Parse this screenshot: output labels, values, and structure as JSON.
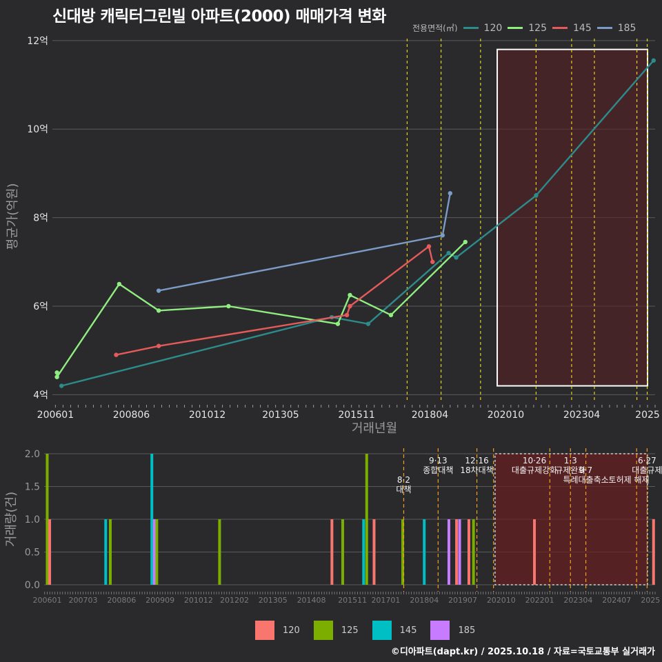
{
  "chart_data": [
    {
      "type": "line",
      "title": "신대방 캐릭터그린빌 아파트(2000) 매매가격 변화",
      "xlabel": "거래년월",
      "ylabel": "평균가(억원)",
      "ylim": [
        3.85,
        12.2
      ],
      "xlim": [
        2005.9,
        2025.75
      ],
      "ytick_values": [
        4,
        6,
        8,
        10,
        12
      ],
      "yticks": [
        "4억",
        "6억",
        "8억",
        "10억",
        "12억"
      ],
      "xtick_values": [
        2006.0,
        2008.5,
        2011.0,
        2013.417,
        2015.917,
        2018.333,
        2020.833,
        2023.333,
        2025.5
      ],
      "xticks": [
        "200601",
        "200806",
        "201012",
        "201305",
        "201511",
        "201804",
        "202010",
        "202304",
        "2025"
      ],
      "legend_title": "전용면적(㎡)",
      "series": [
        {
          "name": "120",
          "color": "#2e8b8b",
          "points": [
            [
              2006.2,
              4.2
            ],
            [
              2015.1,
              5.75
            ],
            [
              2016.3,
              5.6
            ],
            [
              2018.95,
              7.2
            ],
            [
              2019.2,
              7.1
            ],
            [
              2021.83,
              8.5
            ],
            [
              2025.7,
              11.55
            ]
          ]
        },
        {
          "name": "125",
          "color": "#90ee80",
          "points": [
            [
              2006.05,
              4.5
            ],
            [
              2006.05,
              4.4
            ],
            [
              2008.1,
              6.5
            ],
            [
              2009.4,
              5.9
            ],
            [
              2011.7,
              6.0
            ],
            [
              2015.3,
              5.6
            ],
            [
              2015.7,
              6.25
            ],
            [
              2017.05,
              5.8
            ],
            [
              2019.5,
              7.45
            ]
          ]
        },
        {
          "name": "145",
          "color": "#e55b5b",
          "points": [
            [
              2008.0,
              4.9
            ],
            [
              2009.4,
              5.1
            ],
            [
              2015.6,
              5.8
            ],
            [
              2015.7,
              6.0
            ],
            [
              2018.3,
              7.35
            ],
            [
              2018.42,
              7.0
            ]
          ]
        },
        {
          "name": "185",
          "color": "#7a9cc6",
          "points": [
            [
              2009.4,
              6.35
            ],
            [
              2018.75,
              7.6
            ],
            [
              2019.0,
              8.55
            ]
          ]
        }
      ],
      "vlines": [
        2017.583,
        2018.7,
        2020.0,
        2021.83,
        2023.0,
        2023.75,
        2025.15,
        2025.49
      ],
      "highlight": {
        "from": 2020.55,
        "to": 2025.5,
        "ymin": 4.2,
        "ymax": 11.8
      }
    },
    {
      "type": "bar",
      "ylabel": "거래량(건)",
      "ylim": [
        0,
        2.0
      ],
      "xlim": [
        2005.9,
        2025.75
      ],
      "ytick_values": [
        0,
        0.5,
        1,
        1.5,
        2
      ],
      "yticks": [
        "0.0",
        "0.5",
        "1.0",
        "1.5",
        "2.0"
      ],
      "xtick_values": [
        2006.0,
        2007.167,
        2008.417,
        2009.667,
        2010.917,
        2012.083,
        2013.333,
        2014.583,
        2015.917,
        2017.0,
        2018.25,
        2019.5,
        2020.75,
        2022.0,
        2023.25,
        2024.5,
        2025.6
      ],
      "xticks": [
        "200601",
        "200703",
        "200806",
        "200909",
        "201012",
        "201202",
        "201305",
        "201408",
        "201511",
        "201701",
        "201804",
        "201907",
        "202010",
        "202201",
        "202304",
        "202407",
        "2025"
      ],
      "bars": [
        {
          "x": 2006.0,
          "value": 2,
          "series": "125"
        },
        {
          "x": 2006.08,
          "value": 1,
          "series": "120"
        },
        {
          "x": 2007.9,
          "value": 1,
          "series": "145"
        },
        {
          "x": 2008.05,
          "value": 1,
          "series": "125"
        },
        {
          "x": 2009.4,
          "value": 2,
          "series": "145"
        },
        {
          "x": 2009.48,
          "value": 1,
          "series": "185"
        },
        {
          "x": 2009.56,
          "value": 1,
          "series": "125"
        },
        {
          "x": 2011.6,
          "value": 1,
          "series": "125"
        },
        {
          "x": 2015.25,
          "value": 1,
          "series": "120"
        },
        {
          "x": 2015.6,
          "value": 1,
          "series": "125"
        },
        {
          "x": 2016.28,
          "value": 1,
          "series": "145"
        },
        {
          "x": 2016.38,
          "value": 2,
          "series": "125"
        },
        {
          "x": 2016.62,
          "value": 1,
          "series": "120"
        },
        {
          "x": 2017.55,
          "value": 1,
          "series": "125"
        },
        {
          "x": 2018.25,
          "value": 1,
          "series": "145"
        },
        {
          "x": 2019.05,
          "value": 1,
          "series": "185"
        },
        {
          "x": 2019.3,
          "value": 1,
          "series": "120"
        },
        {
          "x": 2019.4,
          "value": 1,
          "series": "185"
        },
        {
          "x": 2019.7,
          "value": 1,
          "series": "120"
        },
        {
          "x": 2019.85,
          "value": 1,
          "series": "125"
        },
        {
          "x": 2021.83,
          "value": 1,
          "series": "120"
        },
        {
          "x": 2025.7,
          "value": 1,
          "series": "120"
        }
      ],
      "vlines": [
        2017.583,
        2018.7,
        2019.96,
        2020.5,
        2022.33,
        2023.0,
        2023.5,
        2025.15,
        2025.49
      ],
      "policies": [
        {
          "date": "8·2",
          "name": "대책",
          "x": 2017.583,
          "row": 2
        },
        {
          "date": "9·13",
          "name": "종합대책",
          "x": 2018.7,
          "row": 0
        },
        {
          "date": "12·16",
          "name": "18차대책",
          "x": 2019.96,
          "row": 0
        },
        {
          "date": "10·26",
          "name": "대출규제강화",
          "x": 2021.83,
          "row": 0
        },
        {
          "date": "1·3",
          "name": "규제완화",
          "x": 2023.0,
          "row": 0
        },
        {
          "date": "9·7",
          "name": "특례대출축소",
          "x": 2023.5,
          "row": 1
        },
        {
          "date": "",
          "name": "토허제 해제",
          "x": 2024.9,
          "row": 1
        },
        {
          "date": "6·27",
          "name": "대출규제",
          "x": 2025.49,
          "row": 0
        }
      ],
      "highlight": {
        "from": 2020.55,
        "to": 2025.5
      }
    }
  ],
  "legend_bottom": [
    {
      "label": "120",
      "color": "#f8766d"
    },
    {
      "label": "125",
      "color": "#7cae00"
    },
    {
      "label": "145",
      "color": "#00bfc4"
    },
    {
      "label": "185",
      "color": "#c77cff"
    }
  ],
  "caption": "©디아파트(dapt.kr) / 2025.10.18 / 자료=국토교통부 실거래가"
}
